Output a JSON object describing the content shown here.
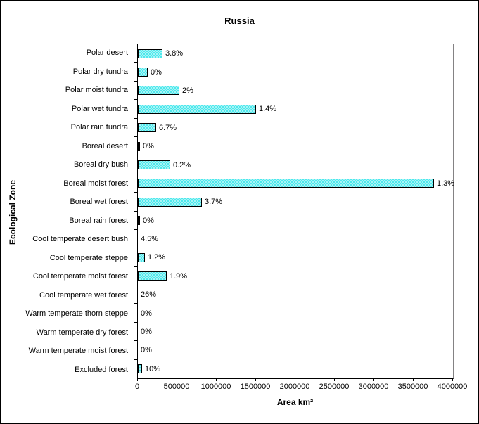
{
  "chart_data": {
    "type": "bar",
    "orientation": "horizontal",
    "title": "Russia",
    "xlabel": "Area km²",
    "ylabel": "Ecological Zone",
    "xlim": [
      0,
      4000000
    ],
    "x_tick_labels": [
      "0",
      "500000",
      "1000000",
      "1500000",
      "2000000",
      "2500000",
      "3000000",
      "3500000",
      "4000000"
    ],
    "grid": false,
    "legend": false,
    "bar_fill_color": "#4DE8EC",
    "bar_border_color": "#000000",
    "bar_pattern": "white-dot-hatch",
    "plot_border_color": "#848284",
    "categories": [
      "Polar desert",
      "Polar dry tundra",
      "Polar moist tundra",
      "Polar wet tundra",
      "Polar rain tundra",
      "Boreal desert",
      "Boreal dry bush",
      "Boreal moist forest",
      "Boreal wet forest",
      "Boreal rain forest",
      "Cool temperate desert bush",
      "Cool temperate steppe",
      "Cool temperate moist forest",
      "Cool temperate wet forest",
      "Warm temperate thorn steppe",
      "Warm temperate dry forest",
      "Warm temperate moist forest",
      "Excluded forest"
    ],
    "values": [
      315000,
      125000,
      530000,
      1500000,
      230000,
      25000,
      410000,
      3760000,
      815000,
      30000,
      0,
      90000,
      365000,
      0,
      0,
      0,
      0,
      50000
    ],
    "bar_labels": [
      "3.8%",
      "0%",
      "2%",
      "1.4%",
      "6.7%",
      "0%",
      "0.2%",
      "1.3%",
      "3.7%",
      "0%",
      "4.5%",
      "1.2%",
      "1.9%",
      "26%",
      "0%",
      "0%",
      "0%",
      "10%"
    ]
  }
}
